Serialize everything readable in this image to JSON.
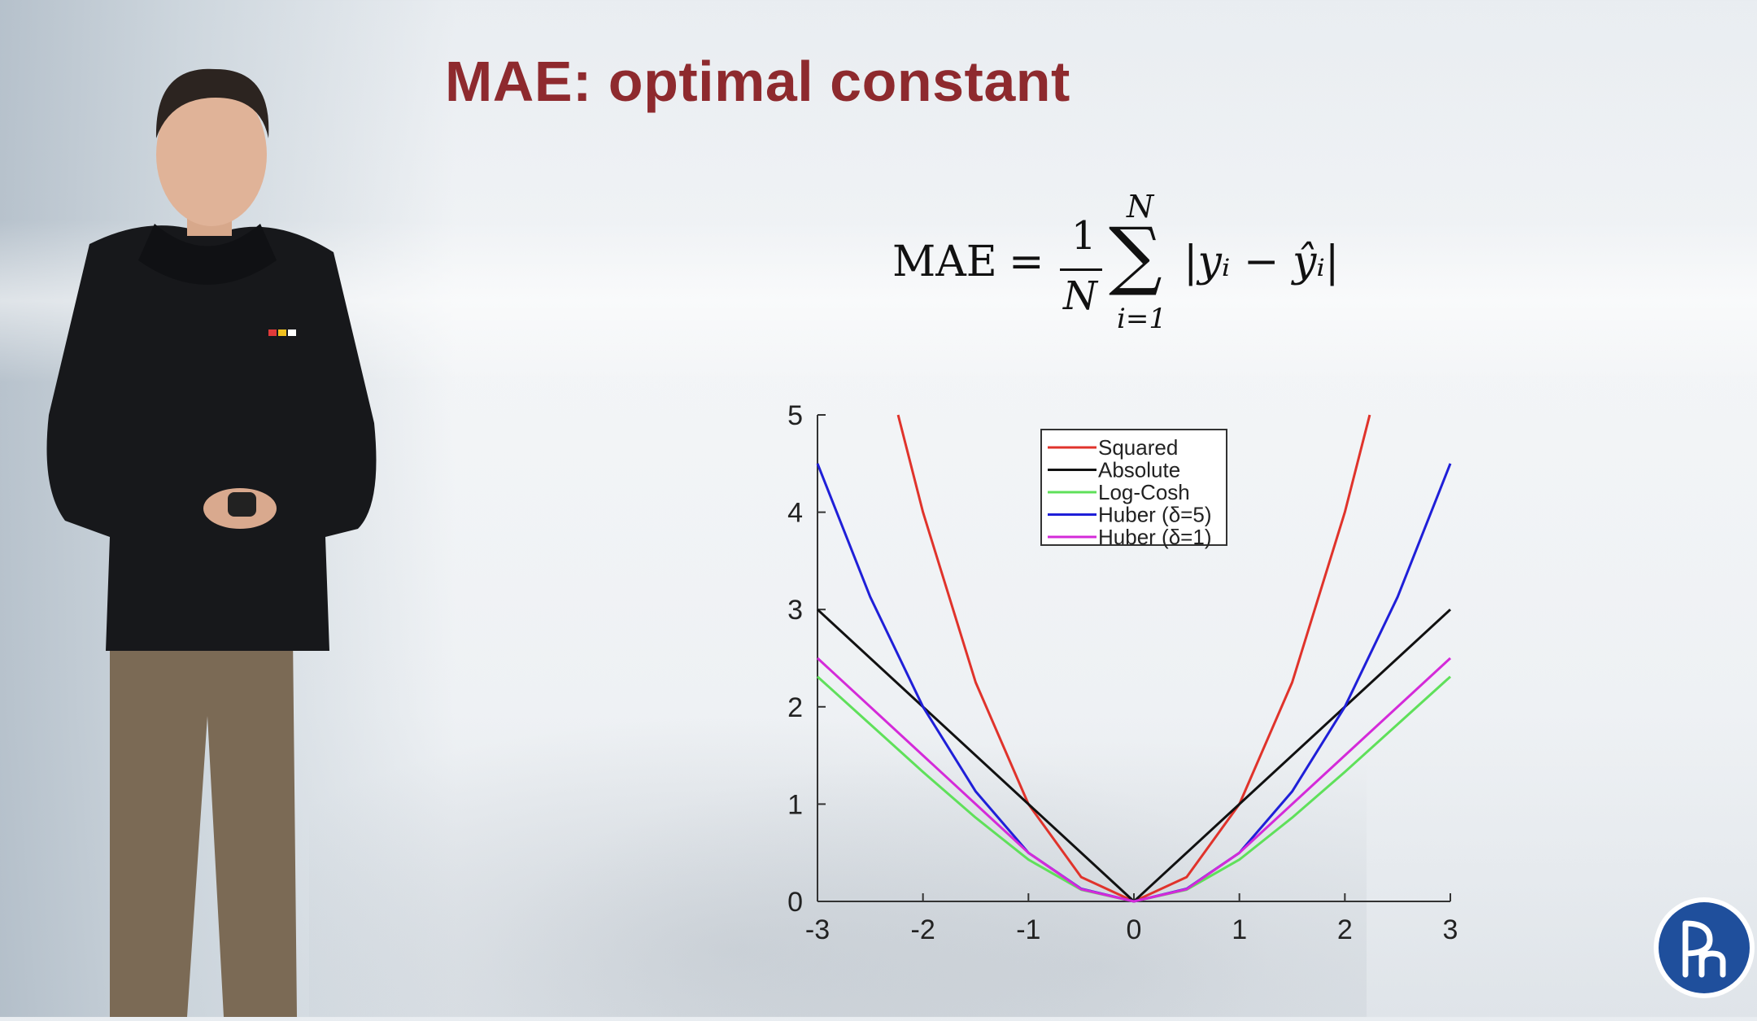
{
  "slide": {
    "title": "MAE: optimal constant",
    "formula": {
      "lhs": "MAE",
      "equals": "=",
      "numerator": "1",
      "denominator": "N",
      "sum_symbol": "∑",
      "sum_upper": "N",
      "sum_lower": "i=1",
      "term": "|yᵢ − ŷᵢ|"
    }
  },
  "chart_data": {
    "type": "line",
    "title": "",
    "xlabel": "",
    "ylabel": "",
    "xlim": [
      -3,
      3
    ],
    "ylim": [
      0,
      5
    ],
    "xticks": [
      -3,
      -2,
      -1,
      0,
      1,
      2,
      3
    ],
    "yticks": [
      0,
      1,
      2,
      3,
      4,
      5
    ],
    "x_tick_labels": [
      "-3",
      "-2",
      "-1",
      "0",
      "1",
      "2",
      "3"
    ],
    "y_tick_labels": [
      "0",
      "1",
      "2",
      "3",
      "4",
      "5"
    ],
    "legend_position": "top-center",
    "series": [
      {
        "name": "Squared",
        "color": "#e0332b",
        "x": [
          -2.236,
          -2,
          -1.5,
          -1,
          -0.5,
          0,
          0.5,
          1,
          1.5,
          2,
          2.236
        ],
        "y": [
          5,
          4,
          2.25,
          1,
          0.25,
          0,
          0.25,
          1,
          2.25,
          4,
          5
        ]
      },
      {
        "name": "Absolute",
        "color": "#111111",
        "x": [
          -3,
          0,
          3
        ],
        "y": [
          3,
          0,
          3
        ]
      },
      {
        "name": "Log-Cosh",
        "color": "#5fe05a",
        "x": [
          -3,
          -2.5,
          -2,
          -1.5,
          -1,
          -0.5,
          0,
          0.5,
          1,
          1.5,
          2,
          2.5,
          3
        ],
        "y": [
          2.31,
          1.82,
          1.33,
          0.86,
          0.43,
          0.12,
          0,
          0.12,
          0.43,
          0.86,
          1.33,
          1.82,
          2.31
        ]
      },
      {
        "name": "Huber (δ=5)",
        "color": "#1f1fd8",
        "x": [
          -3,
          -2.5,
          -2,
          -1.5,
          -1,
          -0.5,
          0,
          0.5,
          1,
          1.5,
          2,
          2.5,
          3
        ],
        "y": [
          4.5,
          3.13,
          2,
          1.13,
          0.5,
          0.13,
          0,
          0.13,
          0.5,
          1.13,
          2,
          3.13,
          4.5
        ]
      },
      {
        "name": "Huber (δ=1)",
        "color": "#d42ad9",
        "x": [
          -3,
          -2,
          -1,
          -0.5,
          0,
          0.5,
          1,
          2,
          3
        ],
        "y": [
          2.5,
          1.5,
          0.5,
          0.125,
          0,
          0.125,
          0.5,
          1.5,
          2.5
        ]
      }
    ]
  },
  "colors": {
    "title": "#8e2a2e",
    "logo_blue": "#1f4f9c"
  },
  "icons": {
    "logo": "university-logo-icon",
    "presenter": "presenter-figure"
  }
}
